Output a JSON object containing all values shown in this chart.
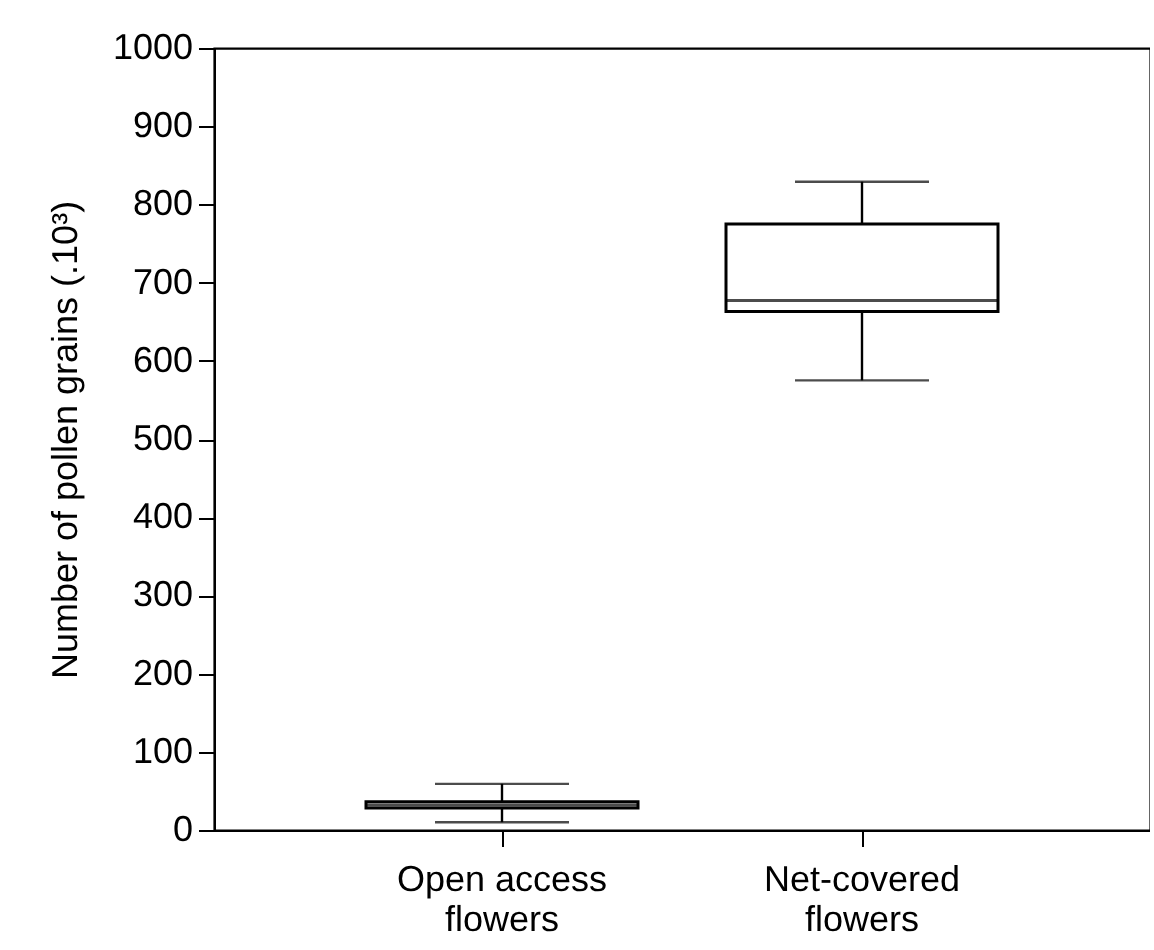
{
  "chart_data": {
    "type": "box",
    "ylabel": "Number of pollen grains (.10³)",
    "categories": [
      "Open access flowers",
      "Net-covered flowers"
    ],
    "boxes": [
      {
        "low": 10,
        "q1": 28,
        "median": 32,
        "q3": 36,
        "high": 59
      },
      {
        "low": 575,
        "q1": 663,
        "median": 677,
        "q3": 775,
        "high": 829
      }
    ],
    "ylim": [
      0,
      1000
    ],
    "yticks": [
      0,
      100,
      200,
      300,
      400,
      500,
      600,
      700,
      800,
      900,
      1000
    ],
    "grid": false
  }
}
